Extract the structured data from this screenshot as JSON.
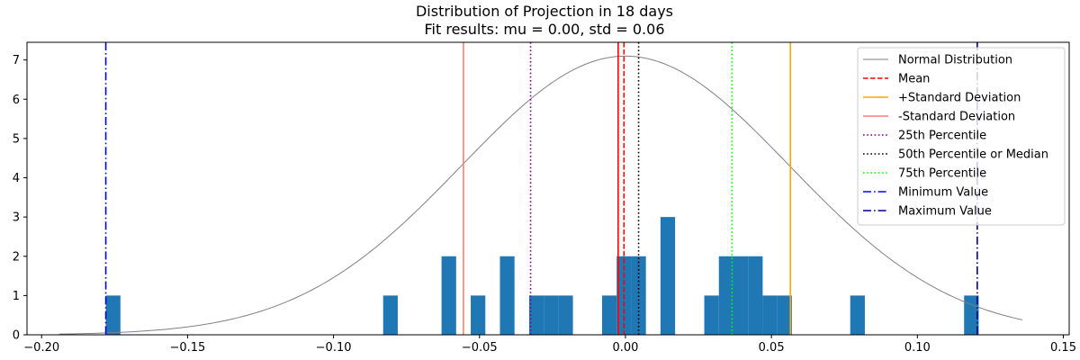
{
  "chart_data": {
    "type": "histogram",
    "title": "Distribution of Projection in 18 days",
    "subtitle": "Fit results: mu = 0.00,  std = 0.06",
    "xlabel": "",
    "ylabel": "",
    "xlim": [
      -0.205,
      0.152
    ],
    "ylim": [
      0,
      7.45
    ],
    "xticks": [
      -0.2,
      -0.15,
      -0.1,
      -0.05,
      0.0,
      0.05,
      0.1,
      0.15
    ],
    "xtick_labels": [
      "−0.20",
      "−0.15",
      "−0.10",
      "−0.05",
      "0.00",
      "0.05",
      "0.10",
      "0.15"
    ],
    "yticks": [
      0,
      1,
      2,
      3,
      4,
      5,
      6,
      7
    ],
    "ytick_labels": [
      "0",
      "1",
      "2",
      "3",
      "4",
      "5",
      "6",
      "7"
    ],
    "grid": false,
    "legend_position": "top-right",
    "histogram": {
      "color": "#1f77b4",
      "bin_width": 0.005,
      "bins": [
        {
          "start": -0.178,
          "count": 1
        },
        {
          "start": -0.083,
          "count": 1
        },
        {
          "start": -0.063,
          "count": 2
        },
        {
          "start": -0.053,
          "count": 1
        },
        {
          "start": -0.043,
          "count": 2
        },
        {
          "start": -0.033,
          "count": 1
        },
        {
          "start": -0.028,
          "count": 1
        },
        {
          "start": -0.023,
          "count": 1
        },
        {
          "start": -0.008,
          "count": 1
        },
        {
          "start": -0.003,
          "count": 2
        },
        {
          "start": 0.002,
          "count": 2
        },
        {
          "start": 0.012,
          "count": 3
        },
        {
          "start": 0.027,
          "count": 1
        },
        {
          "start": 0.032,
          "count": 2
        },
        {
          "start": 0.037,
          "count": 2
        },
        {
          "start": 0.042,
          "count": 2
        },
        {
          "start": 0.047,
          "count": 1
        },
        {
          "start": 0.052,
          "count": 1
        },
        {
          "start": 0.077,
          "count": 1
        },
        {
          "start": 0.116,
          "count": 1
        }
      ]
    },
    "normal_curve": {
      "mu": 0.0,
      "sigma": 0.0562,
      "x_range": [
        -0.194,
        0.136
      ],
      "color": "#808080"
    },
    "vlines": [
      {
        "x": -0.0025,
        "color": "#ff0000",
        "style": "solid",
        "in_legend": false
      },
      {
        "x": -0.0005,
        "color": "#ff0000",
        "style": "dashed",
        "in_legend": true
      },
      {
        "x": 0.0565,
        "color": "#ffa500",
        "style": "solid",
        "in_legend": true
      },
      {
        "x": -0.0555,
        "color": "#fa8072",
        "style": "solid",
        "in_legend": true
      },
      {
        "x": -0.0325,
        "color": "#800080",
        "style": "dotted",
        "in_legend": true
      },
      {
        "x": 0.0045,
        "color": "#000000",
        "style": "dotted",
        "in_legend": true
      },
      {
        "x": 0.0365,
        "color": "#00ff00",
        "style": "dotted",
        "in_legend": true
      },
      {
        "x": -0.178,
        "color": "#0000ff",
        "style": "dashdot",
        "in_legend": true
      },
      {
        "x": 0.1205,
        "color": "#00008b",
        "style": "dashdot",
        "in_legend": true
      }
    ],
    "legend": [
      {
        "label": "Normal Distribution",
        "color": "#808080",
        "style": "solid"
      },
      {
        "label": "Mean",
        "color": "#ff0000",
        "style": "dashed"
      },
      {
        "label": "+Standard Deviation",
        "color": "#ffa500",
        "style": "solid"
      },
      {
        "label": "-Standard Deviation",
        "color": "#fa8072",
        "style": "solid"
      },
      {
        "label": "25th Percentile",
        "color": "#800080",
        "style": "dotted"
      },
      {
        "label": "50th Percentile or Median",
        "color": "#000000",
        "style": "dotted"
      },
      {
        "label": "75th Percentile",
        "color": "#00ff00",
        "style": "dotted"
      },
      {
        "label": "Minimum Value",
        "color": "#0000ff",
        "style": "dashdot"
      },
      {
        "label": "Maximum Value",
        "color": "#00008b",
        "style": "dashdot"
      }
    ]
  }
}
